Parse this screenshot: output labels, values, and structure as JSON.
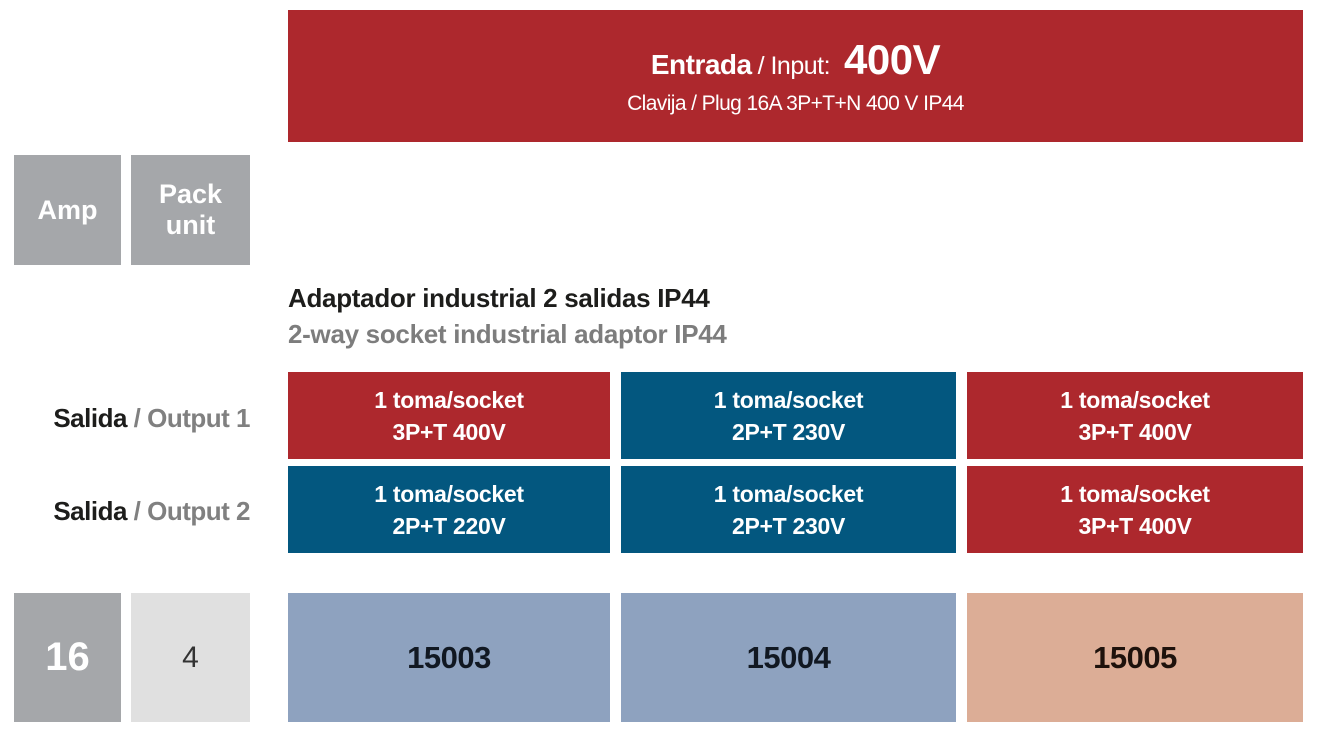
{
  "input": {
    "label_es": "Entrada",
    "label_en": "/ Input:",
    "voltage": "400V",
    "plug": "Clavija / Plug 16A 3P+T+N 400 V IP44",
    "color": "#ad282d"
  },
  "headers": {
    "amp": "Amp",
    "pack_line1": "Pack",
    "pack_line2": "unit"
  },
  "product": {
    "title_es": "Adaptador industrial 2 salidas IP44",
    "title_en": "2-way socket industrial adaptor IP44"
  },
  "outputs": [
    {
      "label_es": "Salida",
      "label_en": "/ Output 1"
    },
    {
      "label_es": "Salida",
      "label_en": "/ Output 2"
    }
  ],
  "columns": [
    {
      "output1": {
        "line1": "1 toma/socket",
        "line2": "3P+T 400V",
        "color": "#ad282d"
      },
      "output2": {
        "line1": "1 toma/socket",
        "line2": "2P+T 220V",
        "color": "#03577f"
      },
      "code": "15003",
      "code_color": "#8ea2bf"
    },
    {
      "output1": {
        "line1": "1 toma/socket",
        "line2": "2P+T 230V",
        "color": "#03577f"
      },
      "output2": {
        "line1": "1 toma/socket",
        "line2": "2P+T 230V",
        "color": "#03577f"
      },
      "code": "15004",
      "code_color": "#8ea2bf"
    },
    {
      "output1": {
        "line1": "1 toma/socket",
        "line2": "3P+T 400V",
        "color": "#ad282d"
      },
      "output2": {
        "line1": "1 toma/socket",
        "line2": "3P+T 400V",
        "color": "#ad282d"
      },
      "code": "15005",
      "code_color": "#dcad96"
    }
  ],
  "values": {
    "amp": "16",
    "pack_unit": "4"
  }
}
